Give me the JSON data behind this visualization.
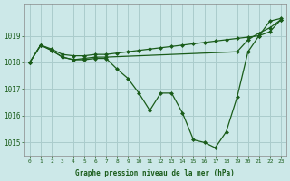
{
  "xlabel": "Graphe pression niveau de la mer (hPa)",
  "background_color": "#cce8e8",
  "grid_color": "#aacccc",
  "line_color": "#1a5c1a",
  "ylim": [
    1014.5,
    1020.2
  ],
  "xlim": [
    -0.5,
    23.5
  ],
  "yticks": [
    1015,
    1016,
    1017,
    1018,
    1019
  ],
  "xticks": [
    0,
    1,
    2,
    3,
    4,
    5,
    6,
    7,
    8,
    9,
    10,
    11,
    12,
    13,
    14,
    15,
    16,
    17,
    18,
    19,
    20,
    21,
    22,
    23
  ],
  "series1_x": [
    0,
    1,
    2,
    3,
    4,
    5,
    6,
    7,
    8,
    9,
    10,
    11,
    12,
    13,
    14,
    15,
    16,
    17,
    18,
    19,
    20,
    21,
    22,
    23
  ],
  "series1_y": [
    1018.0,
    1018.65,
    1018.5,
    1018.3,
    1018.25,
    1018.25,
    1018.3,
    1018.3,
    1018.35,
    1018.4,
    1018.45,
    1018.5,
    1018.55,
    1018.6,
    1018.65,
    1018.7,
    1018.75,
    1018.8,
    1018.85,
    1018.9,
    1018.95,
    1019.0,
    1019.15,
    1019.6
  ],
  "series2_x": [
    0,
    1,
    2,
    3,
    4,
    5,
    6,
    7,
    19,
    20,
    21,
    22,
    23
  ],
  "series2_y": [
    1018.0,
    1018.65,
    1018.45,
    1018.2,
    1018.1,
    1018.15,
    1018.2,
    1018.2,
    1018.4,
    1018.85,
    1019.1,
    1019.3,
    1019.6
  ],
  "series3_x": [
    0,
    1,
    2,
    3,
    4,
    5,
    6,
    7,
    8,
    9,
    10,
    11,
    12,
    13,
    14,
    15,
    16,
    17,
    18,
    19,
    20,
    21,
    22,
    23
  ],
  "series3_y": [
    1018.0,
    1018.65,
    1018.45,
    1018.2,
    1018.1,
    1018.1,
    1018.15,
    1018.15,
    1017.75,
    1017.4,
    1016.85,
    1016.2,
    1016.85,
    1016.85,
    1016.1,
    1015.1,
    1015.0,
    1014.8,
    1015.4,
    1016.7,
    1018.4,
    1019.0,
    1019.55,
    1019.65
  ]
}
